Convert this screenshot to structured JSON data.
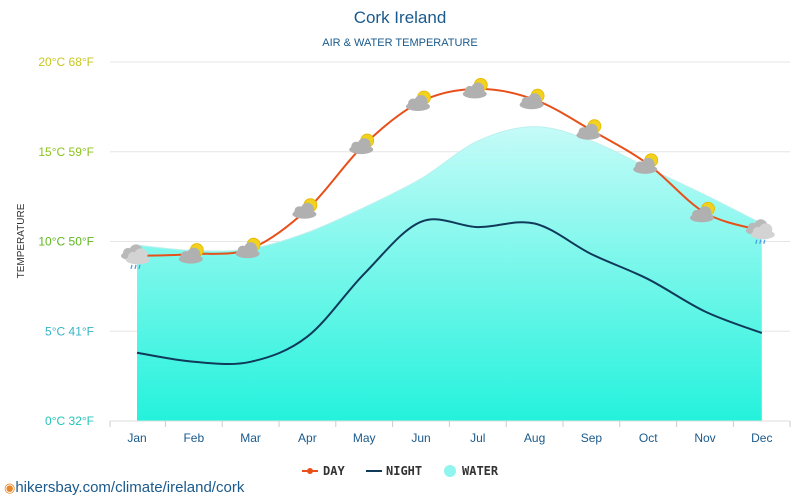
{
  "source_text": "hikersbay.com/climate/ireland/cork",
  "colors": {
    "day": "#e8501a",
    "night": "#0f3a5a",
    "water_top": "#c5fbf8",
    "water_bottom": "#24f2dc",
    "grid": "#e6e6e6",
    "title": "#1a5a8c"
  },
  "chart_data": {
    "type": "line",
    "title": "Cork Ireland",
    "subtitle": "AIR & WATER TEMPERATURE",
    "ylabel": "TEMPERATURE",
    "xlabel": "",
    "ylim": [
      0,
      20
    ],
    "grid": true,
    "legend_position": "bottom-center",
    "categories": [
      "Jan",
      "Feb",
      "Mar",
      "Apr",
      "May",
      "Jun",
      "Jul",
      "Aug",
      "Sep",
      "Oct",
      "Nov",
      "Dec"
    ],
    "y_ticks": [
      {
        "value": 0,
        "label": "0°C 32°F",
        "color": "#22c4b8"
      },
      {
        "value": 5,
        "label": "5°C 41°F",
        "color": "#35b5c8"
      },
      {
        "value": 10,
        "label": "10°C 50°F",
        "color": "#5fb820"
      },
      {
        "value": 15,
        "label": "15°C 59°F",
        "color": "#8cc21c"
      },
      {
        "value": 20,
        "label": "20°C 68°F",
        "color": "#c8c61c"
      }
    ],
    "series": [
      {
        "name": "DAY",
        "values": [
          9.2,
          9.3,
          9.6,
          11.8,
          15.4,
          17.8,
          18.5,
          17.9,
          16.2,
          14.3,
          11.6,
          10.6
        ]
      },
      {
        "name": "NIGHT",
        "values": [
          3.8,
          3.3,
          3.3,
          4.7,
          8.2,
          11.1,
          10.8,
          11.0,
          9.3,
          7.9,
          6.1,
          4.9
        ]
      },
      {
        "name": "WATER",
        "values": [
          9.8,
          9.5,
          9.6,
          10.5,
          11.9,
          13.5,
          15.6,
          16.4,
          15.6,
          14.1,
          12.6,
          11.0
        ]
      }
    ],
    "weather_icons": [
      "cloud-rain-icon",
      "sun-cloud-icon",
      "sun-cloud-icon",
      "sun-cloud-icon",
      "sun-cloud-icon",
      "sun-cloud-icon",
      "sun-cloud-icon",
      "sun-cloud-icon",
      "sun-cloud-icon",
      "sun-cloud-icon",
      "sun-cloud-icon",
      "cloud-rain-icon"
    ]
  }
}
